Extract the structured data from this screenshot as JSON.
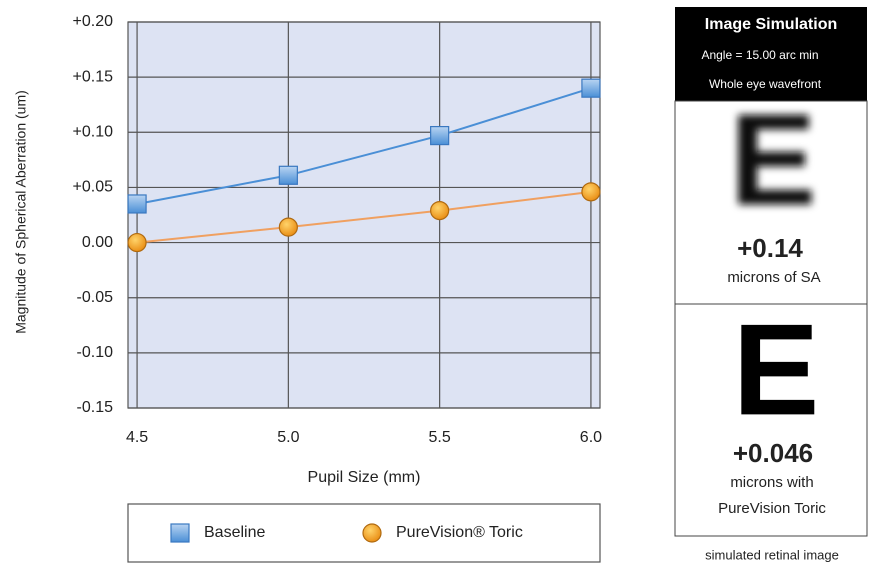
{
  "chart_data": {
    "type": "line",
    "xlabel": "Pupil Size (mm)",
    "ylabel": "Magnitude of Spherical Aberration (um)",
    "x": [
      4.5,
      5.0,
      5.5,
      6.0
    ],
    "series": [
      {
        "name": "Baseline",
        "color": "#4a8fd6",
        "values": [
          0.035,
          0.061,
          0.097,
          0.14
        ]
      },
      {
        "name": "PureVision® Toric",
        "color": "#f0a060",
        "values": [
          0.0,
          0.014,
          0.029,
          0.046
        ]
      }
    ],
    "xlim": [
      4.47,
      6.03
    ],
    "xticks": [
      4.5,
      {
        "value": 5,
        "label": "5.0"
      },
      5.5,
      {
        "value": 6,
        "label": "6.0"
      }
    ],
    "ylim": [
      -0.15,
      0.2
    ],
    "yticks": [
      {
        "value": -0.15,
        "label": "-0.15"
      },
      {
        "value": -0.1,
        "label": "-0.10"
      },
      {
        "value": -0.05,
        "label": "-0.05"
      },
      {
        "value": 0,
        "label": "0.00"
      },
      {
        "value": 0.05,
        "label": "+0.05"
      },
      {
        "value": 0.1,
        "label": "+0.10"
      },
      {
        "value": 0.15,
        "label": "+0.15"
      },
      {
        "value": 0.2,
        "label": "+0.20"
      }
    ],
    "grid": true
  },
  "simulation": {
    "title": "Image Simulation",
    "angle": "Angle = 15.00 arc min",
    "wavefront": "Whole eye wavefront",
    "panels": [
      {
        "letter": "E",
        "value": "+0.14",
        "caption": [
          "microns of SA"
        ]
      },
      {
        "letter": "E",
        "value": "+0.046",
        "caption": [
          "microns with",
          "PureVision Toric"
        ]
      }
    ],
    "footer": "simulated retinal image"
  }
}
